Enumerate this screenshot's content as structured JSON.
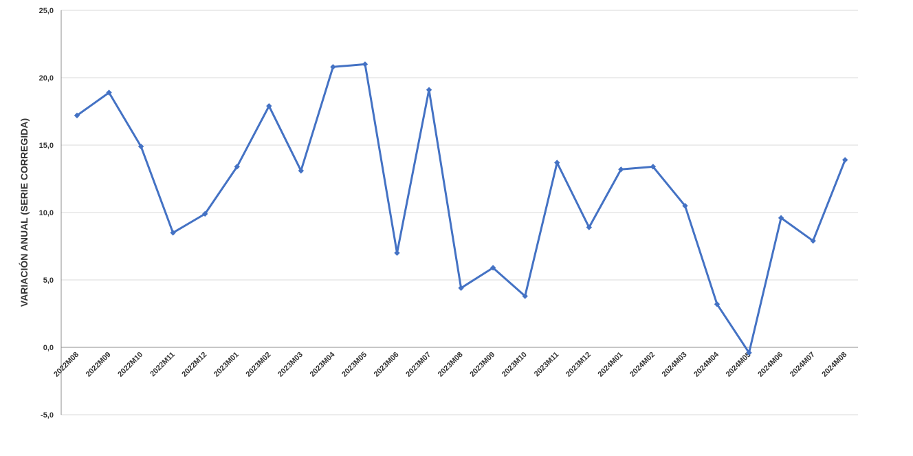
{
  "chart_data": {
    "type": "line",
    "title": "",
    "xlabel": "",
    "ylabel": "VARIACIÓN ANUAL (SERIE CORREGIDA)",
    "ylim": [
      -5,
      25
    ],
    "yticks": [
      "-5,0",
      "0,0",
      "5,0",
      "10,0",
      "15,0",
      "20,0",
      "25,0"
    ],
    "ytick_values": [
      -5,
      0,
      5,
      10,
      15,
      20,
      25
    ],
    "grid": true,
    "legend": "none",
    "line_color": "#4472C4",
    "categories": [
      "2022M08",
      "2022M09",
      "2022M10",
      "2022M11",
      "2022M12",
      "2023M01",
      "2023M02",
      "2023M03",
      "2023M04",
      "2023M05",
      "2023M06",
      "2023M07",
      "2023M08",
      "2023M09",
      "2023M10",
      "2023M11",
      "2023M12",
      "2024M01",
      "2024M02",
      "2024M03",
      "2024M04",
      "2024M05",
      "2024M06",
      "2024M07",
      "2024M08"
    ],
    "series": [
      {
        "values": [
          17.2,
          18.9,
          14.9,
          8.5,
          9.9,
          13.4,
          17.9,
          13.1,
          20.8,
          21.0,
          7.0,
          19.1,
          4.4,
          5.9,
          3.8,
          13.7,
          8.9,
          13.2,
          13.4,
          10.5,
          3.2,
          -0.4,
          9.6,
          7.9,
          13.9
        ]
      }
    ]
  }
}
